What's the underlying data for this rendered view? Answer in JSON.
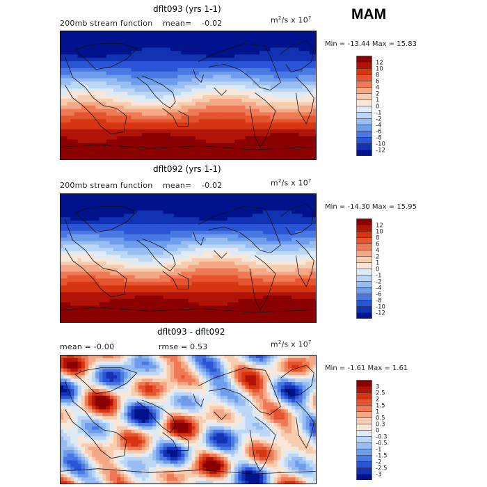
{
  "season": "MAM",
  "colors": {
    "high": [
      "#f8e6d8",
      "#f7cdb0",
      "#f4a886",
      "#ee7b55",
      "#e5542f",
      "#d63512",
      "#b11407",
      "#8b0000"
    ],
    "low": [
      "#deebf7",
      "#bcd6f6",
      "#98bdf2",
      "#6e9deb",
      "#4a78e3",
      "#2b55d6",
      "#1232b4",
      "#00138c"
    ],
    "coast": "#111111",
    "border": "#000000"
  },
  "panels": [
    {
      "title": "dflt093 (yrs 1-1)",
      "left_label": "200mb stream function",
      "mean_label": "mean=",
      "mean_value": "-0.02",
      "units_prefix": "m",
      "units_exp1": "2",
      "units_mid": "/s x 10",
      "units_exp2": "7",
      "minmax": "Min = -13.44 Max =  15.83"
    },
    {
      "title": "dflt092 (yrs 1-1)",
      "left_label": "200mb stream function",
      "mean_label": "mean=",
      "mean_value": "-0.02",
      "units_prefix": "m",
      "units_exp1": "2",
      "units_mid": "/s x 10",
      "units_exp2": "7",
      "minmax": "Min = -14.30 Max =  15.95"
    },
    {
      "title": "dflt093 - dflt092",
      "left_label": "mean =   -0.00",
      "rmse_label": "rmse =    0.53",
      "units_prefix": "m",
      "units_exp1": "2",
      "units_mid": "/s x 10",
      "units_exp2": "7",
      "minmax": "Min = -1.61 Max =  1.61"
    }
  ],
  "chart_data": [
    {
      "type": "heatmap",
      "title": "dflt093 (yrs 1-1)",
      "field": "200mb stream function",
      "units": "m^2/s x 10^7",
      "mean": -0.02,
      "min": -13.44,
      "max": 15.83,
      "legend_levels": [
        "12",
        "10",
        "8",
        "6",
        "4",
        "2",
        "1",
        "0",
        "-1",
        "-2",
        "-4",
        "-6",
        "-8",
        "-10",
        "-12"
      ]
    },
    {
      "type": "heatmap",
      "title": "dflt092 (yrs 1-1)",
      "field": "200mb stream function",
      "units": "m^2/s x 10^7",
      "mean": -0.02,
      "min": -14.3,
      "max": 15.95,
      "legend_levels": [
        "12",
        "10",
        "8",
        "6",
        "4",
        "2",
        "1",
        "0",
        "-1",
        "-2",
        "-4",
        "-6",
        "-8",
        "-10",
        "-12"
      ]
    },
    {
      "type": "heatmap",
      "title": "dflt093 - dflt092",
      "units": "m^2/s x 10^7",
      "mean": -0.0,
      "rmse": 0.53,
      "min": -1.61,
      "max": 1.61,
      "legend_levels": [
        "3",
        "2.5",
        "2",
        "1.5",
        "1",
        "0.5",
        "0.3",
        "0",
        "-0.3",
        "-0.5",
        "-1",
        "-1.5",
        "-2",
        "-2.5",
        "-3"
      ]
    }
  ]
}
